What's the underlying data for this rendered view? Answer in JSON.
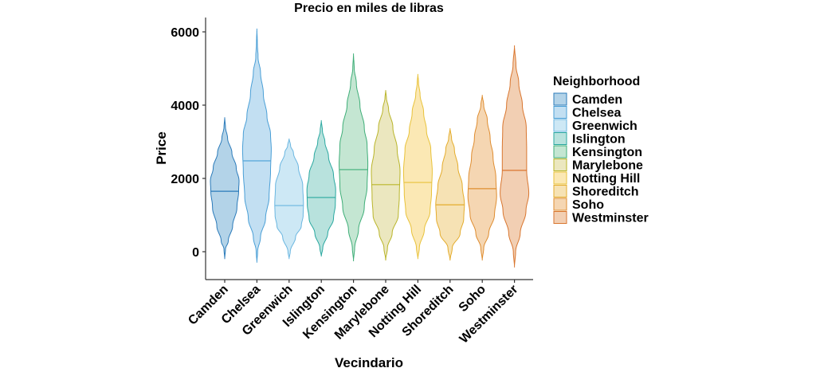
{
  "chart_data": {
    "type": "violin",
    "title": "Precio en miles de libras",
    "xlabel": "Vecindario",
    "ylabel": "Price",
    "ylim": [
      -800,
      6400
    ],
    "yticks": [
      0,
      2000,
      4000,
      6000
    ],
    "grid": false,
    "legend": {
      "title": "Neighborhood",
      "placement": "right"
    },
    "categories": [
      "Camden",
      "Chelsea",
      "Greenwich",
      "Islington",
      "Kensington",
      "Marylebone",
      "Notting Hill",
      "Shoreditch",
      "Soho",
      "Westminster"
    ],
    "series": [
      {
        "name": "Camden",
        "color": "#2b7bba",
        "fill": "#b3d3e8",
        "min": -200,
        "max": 3670,
        "median": 1650,
        "profile": [
          [
            -200,
            0
          ],
          [
            60,
            0.05
          ],
          [
            300,
            0.25
          ],
          [
            700,
            0.55
          ],
          [
            1200,
            0.85
          ],
          [
            1650,
            0.97
          ],
          [
            1930,
            1.0
          ],
          [
            2300,
            0.8
          ],
          [
            2700,
            0.5
          ],
          [
            3100,
            0.2
          ],
          [
            3400,
            0.05
          ],
          [
            3670,
            0
          ]
        ]
      },
      {
        "name": "Chelsea",
        "color": "#4a9fd6",
        "fill": "#c2dff2",
        "min": -300,
        "max": 6090,
        "median": 2480,
        "profile": [
          [
            -300,
            0
          ],
          [
            0,
            0.05
          ],
          [
            400,
            0.25
          ],
          [
            900,
            0.6
          ],
          [
            1500,
            0.85
          ],
          [
            2200,
            0.95
          ],
          [
            2800,
            1.0
          ],
          [
            3200,
            0.95
          ],
          [
            3700,
            0.7
          ],
          [
            4300,
            0.45
          ],
          [
            4900,
            0.25
          ],
          [
            5300,
            0.08
          ],
          [
            5700,
            0.03
          ],
          [
            6090,
            0
          ]
        ]
      },
      {
        "name": "Greenwich",
        "color": "#6ab6e0",
        "fill": "#cde8f5",
        "min": -200,
        "max": 3090,
        "median": 1260,
        "profile": [
          [
            -200,
            0
          ],
          [
            0,
            0.08
          ],
          [
            400,
            0.45
          ],
          [
            700,
            0.85
          ],
          [
            1000,
            0.98
          ],
          [
            1300,
            1.0
          ],
          [
            1800,
            0.95
          ],
          [
            2300,
            0.65
          ],
          [
            2700,
            0.3
          ],
          [
            2900,
            0.1
          ],
          [
            3090,
            0
          ]
        ]
      },
      {
        "name": "Islington",
        "color": "#2aa8a0",
        "fill": "#b8e2dd",
        "min": -130,
        "max": 3590,
        "median": 1480,
        "profile": [
          [
            -130,
            0
          ],
          [
            100,
            0.1
          ],
          [
            500,
            0.45
          ],
          [
            900,
            0.85
          ],
          [
            1300,
            0.98
          ],
          [
            1700,
            1.0
          ],
          [
            2100,
            0.85
          ],
          [
            2600,
            0.5
          ],
          [
            3000,
            0.25
          ],
          [
            3300,
            0.08
          ],
          [
            3590,
            0
          ]
        ]
      },
      {
        "name": "Kensington",
        "color": "#3fae78",
        "fill": "#c4e6d2",
        "min": -260,
        "max": 5410,
        "median": 2240,
        "profile": [
          [
            -260,
            0
          ],
          [
            100,
            0.08
          ],
          [
            600,
            0.35
          ],
          [
            1200,
            0.75
          ],
          [
            1800,
            0.95
          ],
          [
            2400,
            1.0
          ],
          [
            2900,
            0.95
          ],
          [
            3400,
            0.75
          ],
          [
            4000,
            0.45
          ],
          [
            4600,
            0.2
          ],
          [
            5000,
            0.05
          ],
          [
            5410,
            0
          ]
        ]
      },
      {
        "name": "Marylebone",
        "color": "#b9b52a",
        "fill": "#ebe7bf",
        "min": -240,
        "max": 4410,
        "median": 1830,
        "profile": [
          [
            -240,
            0
          ],
          [
            100,
            0.12
          ],
          [
            500,
            0.45
          ],
          [
            1000,
            0.88
          ],
          [
            1500,
            0.95
          ],
          [
            2200,
            1.0
          ],
          [
            2800,
            0.8
          ],
          [
            3400,
            0.5
          ],
          [
            3900,
            0.2
          ],
          [
            4200,
            0.05
          ],
          [
            4410,
            0
          ]
        ]
      },
      {
        "name": "Notting Hill",
        "color": "#e8c23a",
        "fill": "#fbe8b4",
        "min": -200,
        "max": 4850,
        "median": 1890,
        "profile": [
          [
            -200,
            0
          ],
          [
            100,
            0.1
          ],
          [
            600,
            0.45
          ],
          [
            1100,
            0.85
          ],
          [
            1600,
            0.95
          ],
          [
            2200,
            1.0
          ],
          [
            2800,
            0.9
          ],
          [
            3300,
            0.6
          ],
          [
            3800,
            0.4
          ],
          [
            4300,
            0.15
          ],
          [
            4600,
            0.05
          ],
          [
            4850,
            0
          ]
        ]
      },
      {
        "name": "Shoreditch",
        "color": "#e4ac2c",
        "fill": "#f6e2b4",
        "min": -240,
        "max": 3370,
        "median": 1280,
        "profile": [
          [
            -240,
            0
          ],
          [
            100,
            0.15
          ],
          [
            500,
            0.7
          ],
          [
            900,
            0.95
          ],
          [
            1300,
            1.0
          ],
          [
            1800,
            0.85
          ],
          [
            2300,
            0.55
          ],
          [
            2800,
            0.3
          ],
          [
            3100,
            0.1
          ],
          [
            3370,
            0
          ]
        ]
      },
      {
        "name": "Soho",
        "color": "#df8d30",
        "fill": "#f5d6b2",
        "min": -240,
        "max": 4280,
        "median": 1720,
        "profile": [
          [
            -240,
            0
          ],
          [
            100,
            0.1
          ],
          [
            500,
            0.45
          ],
          [
            1000,
            0.85
          ],
          [
            1500,
            1.0
          ],
          [
            2000,
            0.95
          ],
          [
            2600,
            0.75
          ],
          [
            3100,
            0.55
          ],
          [
            3600,
            0.35
          ],
          [
            4000,
            0.1
          ],
          [
            4280,
            0
          ]
        ]
      },
      {
        "name": "Westminster",
        "color": "#d9762f",
        "fill": "#f2cfb3",
        "min": -430,
        "max": 5630,
        "median": 2220,
        "profile": [
          [
            -430,
            0
          ],
          [
            0,
            0.08
          ],
          [
            500,
            0.4
          ],
          [
            1100,
            0.8
          ],
          [
            1600,
            1.0
          ],
          [
            2200,
            0.85
          ],
          [
            2800,
            0.85
          ],
          [
            3400,
            0.82
          ],
          [
            4000,
            0.55
          ],
          [
            4600,
            0.3
          ],
          [
            5100,
            0.1
          ],
          [
            5630,
            0
          ]
        ]
      }
    ]
  }
}
